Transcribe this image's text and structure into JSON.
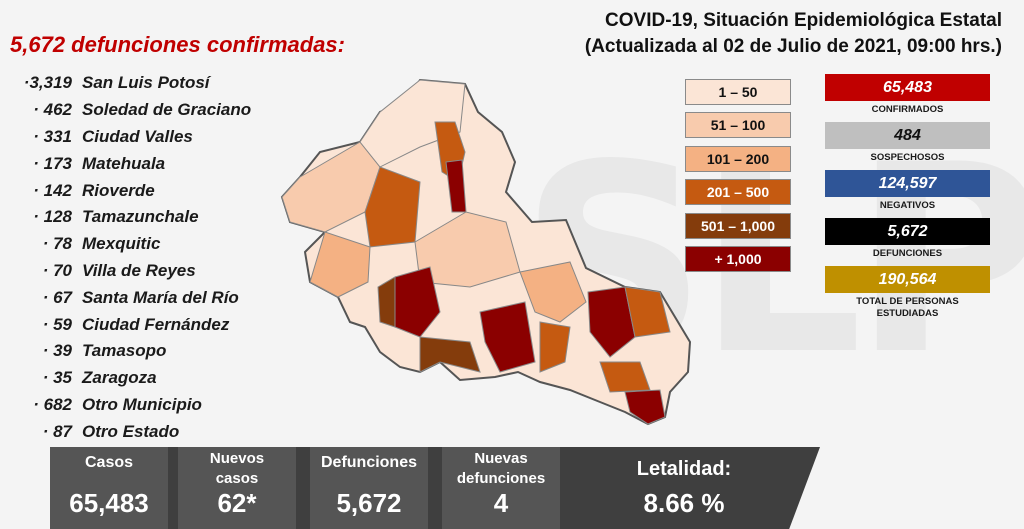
{
  "header": {
    "headline": "5,672 defunciones confirmadas:",
    "title_line1": "COVID-19, Situación Epidemiológica Estatal",
    "title_line2": "(Actualizada al 02 de Julio de 2021, 09:00 hrs.)"
  },
  "municipalities": [
    {
      "count": "·3,319",
      "name": "San Luis Potosí"
    },
    {
      "count": "· 462",
      "name": "Soledad de Graciano"
    },
    {
      "count": "· 331",
      "name": "Ciudad Valles"
    },
    {
      "count": "· 173",
      "name": "Matehuala"
    },
    {
      "count": "· 142",
      "name": "Rioverde"
    },
    {
      "count": "· 128",
      "name": "Tamazunchale"
    },
    {
      "count": "· 78",
      "name": "Mexquitic"
    },
    {
      "count": "· 70",
      "name": "Villa de Reyes"
    },
    {
      "count": "· 67",
      "name": "Santa María del Río"
    },
    {
      "count": "· 59",
      "name": "Ciudad Fernández"
    },
    {
      "count": "· 39",
      "name": "Tamasopo"
    },
    {
      "count": "· 35",
      "name": "Zaragoza"
    },
    {
      "count": "· 682",
      "name": "Otro Municipio"
    },
    {
      "count": "· 87",
      "name": "Otro Estado"
    }
  ],
  "legend": [
    {
      "label": "1 – 50",
      "color": "#fbe5d6",
      "text_color": "#111111"
    },
    {
      "label": "51 – 100",
      "color": "#f8cbad",
      "text_color": "#111111"
    },
    {
      "label": "101 – 200",
      "color": "#f4b183",
      "text_color": "#111111"
    },
    {
      "label": "201 – 500",
      "color": "#c55a11",
      "text_color": "#ffffff"
    },
    {
      "label": "501 – 1,000",
      "color": "#843c0c",
      "text_color": "#ffffff"
    },
    {
      "label": "+ 1,000",
      "color": "#8b0000",
      "text_color": "#ffffff"
    }
  ],
  "stats": [
    {
      "value": "65,483",
      "label": "CONFIRMADOS",
      "color": "#c00000"
    },
    {
      "value": "484",
      "label": "SOSPECHOSOS",
      "color": "#bfbfbf",
      "text_color": "#111111"
    },
    {
      "value": "124,597",
      "label": "NEGATIVOS",
      "color": "#2f5597"
    },
    {
      "value": "5,672",
      "label": "DEFUNCIONES",
      "color": "#000000"
    },
    {
      "value": "190,564",
      "label": "TOTAL DE PERSONAS ESTUDIADAS",
      "color": "#bf9000"
    }
  ],
  "summary": {
    "casos_label": "Casos",
    "casos_value": "65,483",
    "nuevos_casos_label": "Nuevos casos",
    "nuevos_casos_value": "62*",
    "defunciones_label": "Defunciones",
    "defunciones_value": "5,672",
    "nuevas_defunciones_label": "Nuevas defunciones",
    "nuevas_defunciones_value": "4",
    "letalidad_label": "Letalidad:",
    "letalidad_value": "8.66 %"
  }
}
